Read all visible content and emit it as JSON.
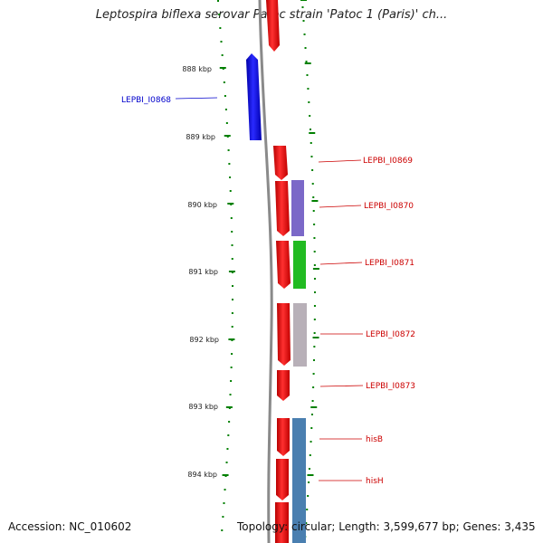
{
  "title": "Leptospira biflexa serovar Patoc strain 'Patoc 1 (Paris)' ch...",
  "accession": "Accession: NC_010602",
  "stats": "Topology: circular; Length: 3,599,677 bp; Genes: 3,435",
  "kbp_labels": [
    {
      "text": "888 kbp"
    },
    {
      "text": "889 kbp"
    },
    {
      "text": "890 kbp"
    },
    {
      "text": "891 kbp"
    },
    {
      "text": "892 kbp"
    },
    {
      "text": "893 kbp"
    },
    {
      "text": "894 kbp"
    }
  ],
  "gene_labels": [
    {
      "text": "LEPBI_I0868",
      "color": "#0000cc"
    },
    {
      "text": "LEPBI_I0869",
      "color": "#cc0000"
    },
    {
      "text": "LEPBI_I0870",
      "color": "#cc0000"
    },
    {
      "text": "LEPBI_I0871",
      "color": "#cc0000"
    },
    {
      "text": "LEPBI_I0872",
      "color": "#cc0000"
    },
    {
      "text": "LEPBI_I0873",
      "color": "#cc0000"
    },
    {
      "text": "hisB",
      "color": "#cc0000"
    },
    {
      "text": "hisH",
      "color": "#cc0000"
    }
  ],
  "colors": {
    "tick": "#008000",
    "backbone": "#8a8a8a",
    "forward_gene": "#ee0000",
    "reverse_gene": "#0000dd",
    "cog_purple": "#7b68c8",
    "cog_green": "#22bb22",
    "cog_gray": "#b8b0b8",
    "cog_steelblue": "#4a7fb0"
  }
}
